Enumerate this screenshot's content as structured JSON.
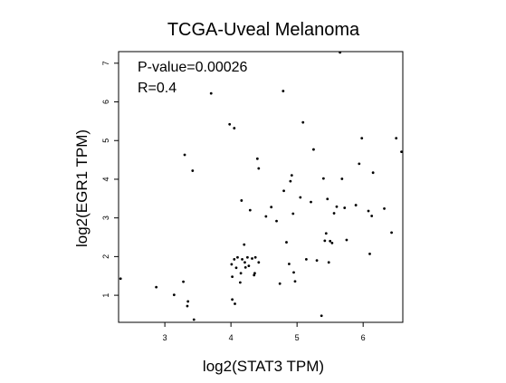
{
  "chart_data": {
    "type": "scatter",
    "title": "TCGA-Uveal Melanoma",
    "xlabel": "log2(STAT3 TPM)",
    "ylabel": "log2(EGR1 TPM)",
    "xlim": [
      2.3,
      6.6
    ],
    "ylim": [
      0.3,
      7.3
    ],
    "xticks": [
      3,
      4,
      5,
      6
    ],
    "yticks": [
      1,
      2,
      3,
      4,
      5,
      6,
      7
    ],
    "grid": false,
    "legend": "none",
    "annotations": [
      "P-value=0.00026",
      "R=0.4"
    ],
    "points": [
      [
        2.33,
        1.43
      ],
      [
        2.87,
        1.21
      ],
      [
        3.14,
        1.01
      ],
      [
        3.28,
        1.35
      ],
      [
        3.3,
        4.63
      ],
      [
        3.34,
        0.72
      ],
      [
        3.35,
        0.84
      ],
      [
        3.42,
        4.22
      ],
      [
        3.44,
        0.37
      ],
      [
        3.7,
        6.22
      ],
      [
        3.98,
        5.42
      ],
      [
        4.01,
        1.8
      ],
      [
        4.02,
        0.89
      ],
      [
        4.02,
        1.48
      ],
      [
        4.05,
        5.32
      ],
      [
        4.05,
        1.93
      ],
      [
        4.06,
        0.78
      ],
      [
        4.08,
        1.71
      ],
      [
        4.1,
        1.98
      ],
      [
        4.14,
        1.33
      ],
      [
        4.15,
        1.57
      ],
      [
        4.16,
        3.45
      ],
      [
        4.17,
        1.93
      ],
      [
        4.2,
        2.31
      ],
      [
        4.21,
        1.85
      ],
      [
        4.22,
        1.72
      ],
      [
        4.25,
        1.98
      ],
      [
        4.27,
        1.76
      ],
      [
        4.29,
        3.2
      ],
      [
        4.32,
        1.95
      ],
      [
        4.35,
        1.52
      ],
      [
        4.36,
        1.57
      ],
      [
        4.37,
        1.98
      ],
      [
        4.4,
        4.53
      ],
      [
        4.42,
        4.28
      ],
      [
        4.42,
        1.85
      ],
      [
        4.53,
        3.04
      ],
      [
        4.61,
        3.28
      ],
      [
        4.69,
        2.92
      ],
      [
        4.74,
        1.3
      ],
      [
        4.79,
        6.28
      ],
      [
        4.8,
        3.7
      ],
      [
        4.84,
        2.37
      ],
      [
        4.88,
        1.81
      ],
      [
        4.9,
        3.95
      ],
      [
        4.92,
        4.1
      ],
      [
        4.94,
        3.11
      ],
      [
        4.95,
        1.59
      ],
      [
        4.97,
        1.36
      ],
      [
        5.05,
        3.53
      ],
      [
        5.09,
        5.47
      ],
      [
        5.14,
        1.93
      ],
      [
        5.21,
        3.41
      ],
      [
        5.25,
        4.77
      ],
      [
        5.3,
        1.9
      ],
      [
        5.37,
        0.47
      ],
      [
        5.4,
        4.02
      ],
      [
        5.42,
        2.41
      ],
      [
        5.44,
        2.6
      ],
      [
        5.46,
        3.49
      ],
      [
        5.48,
        1.85
      ],
      [
        5.5,
        2.4
      ],
      [
        5.53,
        2.35
      ],
      [
        5.56,
        3.12
      ],
      [
        5.6,
        3.29
      ],
      [
        5.65,
        7.28
      ],
      [
        5.68,
        4.01
      ],
      [
        5.72,
        3.26
      ],
      [
        5.75,
        2.43
      ],
      [
        5.89,
        3.33
      ],
      [
        5.94,
        4.4
      ],
      [
        5.98,
        5.06
      ],
      [
        6.08,
        3.18
      ],
      [
        6.1,
        2.07
      ],
      [
        6.13,
        3.05
      ],
      [
        6.15,
        4.17
      ],
      [
        6.32,
        3.24
      ],
      [
        6.43,
        2.62
      ],
      [
        6.5,
        5.06
      ],
      [
        6.58,
        4.71
      ]
    ]
  }
}
